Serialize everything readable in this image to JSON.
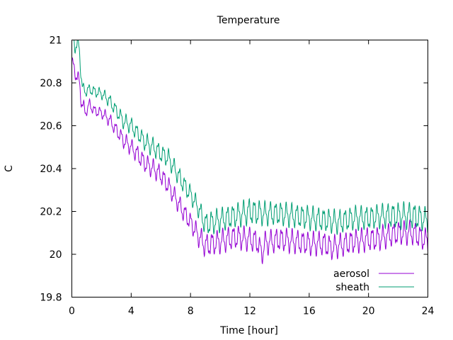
{
  "chart_data": {
    "type": "line",
    "title": "Temperature",
    "xlabel": "Time [hour]",
    "ylabel": "C",
    "xlim": [
      0,
      24
    ],
    "ylim": [
      19.8,
      21
    ],
    "xticks": [
      0,
      4,
      8,
      12,
      16,
      20,
      24
    ],
    "xtick_labels": [
      "0",
      "4",
      "8",
      "12",
      "16",
      "20",
      "24"
    ],
    "yticks": [
      19.8,
      20,
      20.2,
      20.4,
      20.6,
      20.8,
      21
    ],
    "ytick_labels": [
      "19.8",
      "20",
      "20.2",
      "20.4",
      "20.6",
      "20.8",
      "21"
    ],
    "grid": false,
    "legend_position": "bottom-right",
    "series": [
      {
        "name": "aerosol",
        "color": "#9400d3",
        "x": [
          0,
          0.1,
          0.3,
          0.5,
          0.7,
          0.9,
          1.2,
          1.5,
          2.0,
          2.5,
          3.0,
          3.5,
          4.0,
          4.5,
          5.0,
          5.5,
          6.0,
          6.5,
          7.0,
          7.5,
          8.0,
          8.5,
          9.0,
          9.5,
          10.0,
          11.0,
          12.0,
          12.5,
          12.8,
          13.0,
          14.0,
          15.0,
          16.0,
          17.0,
          17.5,
          18.0,
          19.0,
          20.0,
          20.5,
          21.0,
          22.0,
          23.0,
          24.0
        ],
        "y": [
          20.9,
          20.87,
          20.84,
          20.8,
          20.7,
          20.66,
          20.7,
          20.67,
          20.66,
          20.63,
          20.58,
          20.53,
          20.5,
          20.46,
          20.42,
          20.4,
          20.37,
          20.32,
          20.26,
          20.2,
          20.15,
          20.09,
          20.04,
          20.05,
          20.06,
          20.08,
          20.07,
          20.06,
          20.0,
          20.05,
          20.07,
          20.06,
          20.05,
          20.05,
          20.03,
          20.04,
          20.06,
          20.07,
          20.07,
          20.08,
          20.1,
          20.1,
          20.06
        ],
        "amplitude": [
          0.03,
          0.03,
          0.03,
          0.03,
          0.04,
          0.02,
          0.02,
          0.02,
          0.02,
          0.025,
          0.025,
          0.03,
          0.03,
          0.035,
          0.035,
          0.035,
          0.035,
          0.035,
          0.035,
          0.035,
          0.035,
          0.04,
          0.045,
          0.045,
          0.045,
          0.045,
          0.045,
          0.045,
          0.045,
          0.045,
          0.045,
          0.045,
          0.045,
          0.045,
          0.045,
          0.045,
          0.045,
          0.045,
          0.045,
          0.045,
          0.045,
          0.045,
          0.045
        ]
      },
      {
        "name": "sheath",
        "color": "#009e73",
        "x": [
          0,
          0.1,
          0.3,
          0.5,
          0.7,
          0.9,
          1.2,
          1.5,
          2.0,
          2.5,
          3.0,
          3.5,
          4.0,
          4.5,
          5.0,
          5.5,
          6.0,
          6.5,
          7.0,
          7.5,
          8.0,
          8.5,
          9.0,
          9.5,
          10.0,
          11.0,
          12.0,
          13.0,
          14.0,
          15.0,
          16.0,
          17.0,
          18.0,
          19.0,
          20.0,
          21.0,
          22.0,
          23.0,
          24.0
        ],
        "y": [
          21.02,
          21.0,
          20.98,
          20.96,
          20.78,
          20.76,
          20.77,
          20.76,
          20.75,
          20.72,
          20.67,
          20.62,
          20.6,
          20.56,
          20.52,
          20.5,
          20.47,
          20.45,
          20.39,
          20.33,
          20.28,
          20.22,
          20.14,
          20.15,
          20.16,
          20.18,
          20.2,
          20.19,
          20.19,
          20.18,
          20.17,
          20.16,
          20.15,
          20.17,
          20.17,
          20.18,
          20.18,
          20.18,
          20.16
        ],
        "amplitude": [
          0.04,
          0.04,
          0.04,
          0.04,
          0.02,
          0.02,
          0.02,
          0.02,
          0.02,
          0.025,
          0.025,
          0.03,
          0.03,
          0.03,
          0.035,
          0.035,
          0.035,
          0.035,
          0.035,
          0.035,
          0.035,
          0.035,
          0.045,
          0.045,
          0.045,
          0.045,
          0.05,
          0.045,
          0.045,
          0.045,
          0.045,
          0.045,
          0.045,
          0.045,
          0.045,
          0.045,
          0.05,
          0.05,
          0.045
        ]
      }
    ]
  }
}
